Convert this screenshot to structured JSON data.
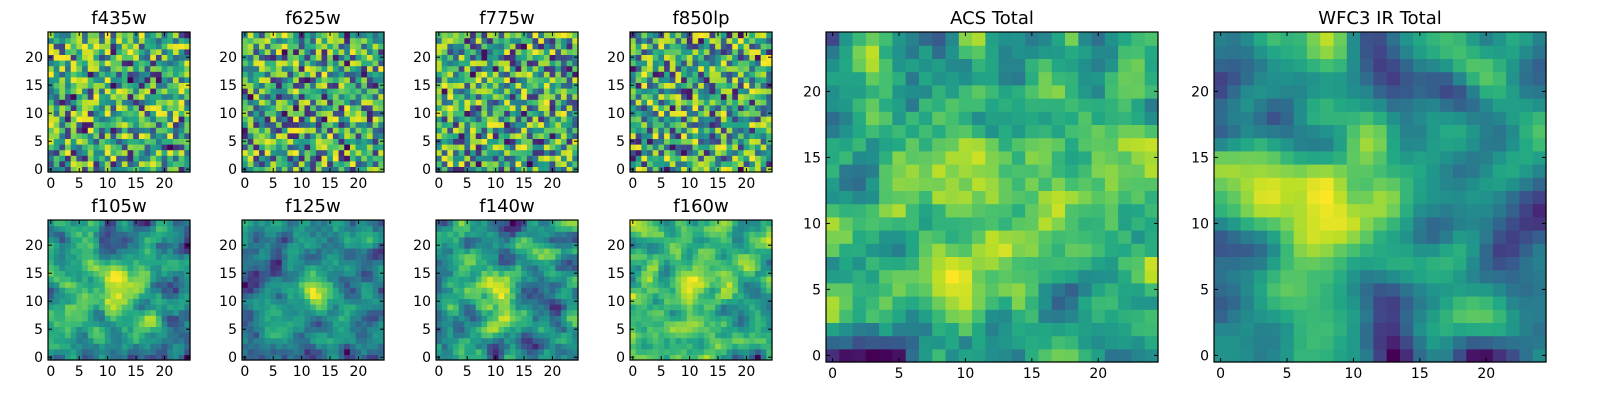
{
  "chart_data": [
    {
      "type": "heatmap",
      "title": "f435w",
      "xticks": [
        "0",
        "5",
        "10",
        "15",
        "20"
      ],
      "yticks": [
        "0",
        "5",
        "10",
        "15",
        "20"
      ],
      "xlim": [
        -0.5,
        24.5
      ],
      "ylim": [
        -0.5,
        24.5
      ],
      "colormap": "viridis",
      "grid": false,
      "values": "25x25 noise image (per-pixel values not legible)"
    },
    {
      "type": "heatmap",
      "title": "f625w",
      "xticks": [
        "0",
        "5",
        "10",
        "15",
        "20"
      ],
      "yticks": [
        "0",
        "5",
        "10",
        "15",
        "20"
      ],
      "xlim": [
        -0.5,
        24.5
      ],
      "ylim": [
        -0.5,
        24.5
      ],
      "colormap": "viridis",
      "grid": false,
      "values": "25x25 noise image (per-pixel values not legible)"
    },
    {
      "type": "heatmap",
      "title": "f775w",
      "xticks": [
        "0",
        "5",
        "10",
        "15",
        "20"
      ],
      "yticks": [
        "0",
        "5",
        "10",
        "15",
        "20"
      ],
      "xlim": [
        -0.5,
        24.5
      ],
      "ylim": [
        -0.5,
        24.5
      ],
      "colormap": "viridis",
      "grid": false,
      "values": "25x25 noise image (per-pixel values not legible)"
    },
    {
      "type": "heatmap",
      "title": "f850lp",
      "xticks": [
        "0",
        "5",
        "10",
        "15",
        "20"
      ],
      "yticks": [
        "0",
        "5",
        "10",
        "15",
        "20"
      ],
      "xlim": [
        -0.5,
        24.5
      ],
      "ylim": [
        -0.5,
        24.5
      ],
      "colormap": "viridis",
      "grid": false,
      "values": "25x25 noise image (per-pixel values not legible)"
    },
    {
      "type": "heatmap",
      "title": "f105w",
      "xticks": [
        "0",
        "5",
        "10",
        "15",
        "20"
      ],
      "yticks": [
        "0",
        "5",
        "10",
        "15",
        "20"
      ],
      "xlim": [
        -0.5,
        24.5
      ],
      "ylim": [
        -0.5,
        24.5
      ],
      "colormap": "viridis",
      "grid": false,
      "values": "25x25 noise image (per-pixel values not legible)"
    },
    {
      "type": "heatmap",
      "title": "f125w",
      "xticks": [
        "0",
        "5",
        "10",
        "15",
        "20"
      ],
      "yticks": [
        "0",
        "5",
        "10",
        "15",
        "20"
      ],
      "xlim": [
        -0.5,
        24.5
      ],
      "ylim": [
        -0.5,
        24.5
      ],
      "colormap": "viridis",
      "grid": false,
      "values": "25x25 noise image (per-pixel values not legible)"
    },
    {
      "type": "heatmap",
      "title": "f140w",
      "xticks": [
        "0",
        "5",
        "10",
        "15",
        "20"
      ],
      "yticks": [
        "0",
        "5",
        "10",
        "15",
        "20"
      ],
      "xlim": [
        -0.5,
        24.5
      ],
      "ylim": [
        -0.5,
        24.5
      ],
      "colormap": "viridis",
      "grid": false,
      "values": "25x25 noise image (per-pixel values not legible)"
    },
    {
      "type": "heatmap",
      "title": "f160w",
      "xticks": [
        "0",
        "5",
        "10",
        "15",
        "20"
      ],
      "yticks": [
        "0",
        "5",
        "10",
        "15",
        "20"
      ],
      "xlim": [
        -0.5,
        24.5
      ],
      "ylim": [
        -0.5,
        24.5
      ],
      "colormap": "viridis",
      "grid": false,
      "values": "25x25 noise image (per-pixel values not legible)"
    },
    {
      "type": "heatmap",
      "title": "ACS Total",
      "xticks": [
        "0",
        "5",
        "10",
        "15",
        "20"
      ],
      "yticks": [
        "0",
        "5",
        "10",
        "15",
        "20"
      ],
      "xlim": [
        -0.5,
        24.5
      ],
      "ylim": [
        -0.5,
        24.5
      ],
      "colormap": "viridis",
      "grid": false,
      "values": "25x25 noise image (per-pixel values not legible)"
    },
    {
      "type": "heatmap",
      "title": "WFC3 IR Total",
      "xticks": [
        "0",
        "5",
        "10",
        "15",
        "20"
      ],
      "yticks": [
        "0",
        "5",
        "10",
        "15",
        "20"
      ],
      "xlim": [
        -0.5,
        24.5
      ],
      "ylim": [
        -0.5,
        24.5
      ],
      "colormap": "viridis",
      "grid": false,
      "values": "25x25 noise image (per-pixel values not legible)"
    }
  ]
}
